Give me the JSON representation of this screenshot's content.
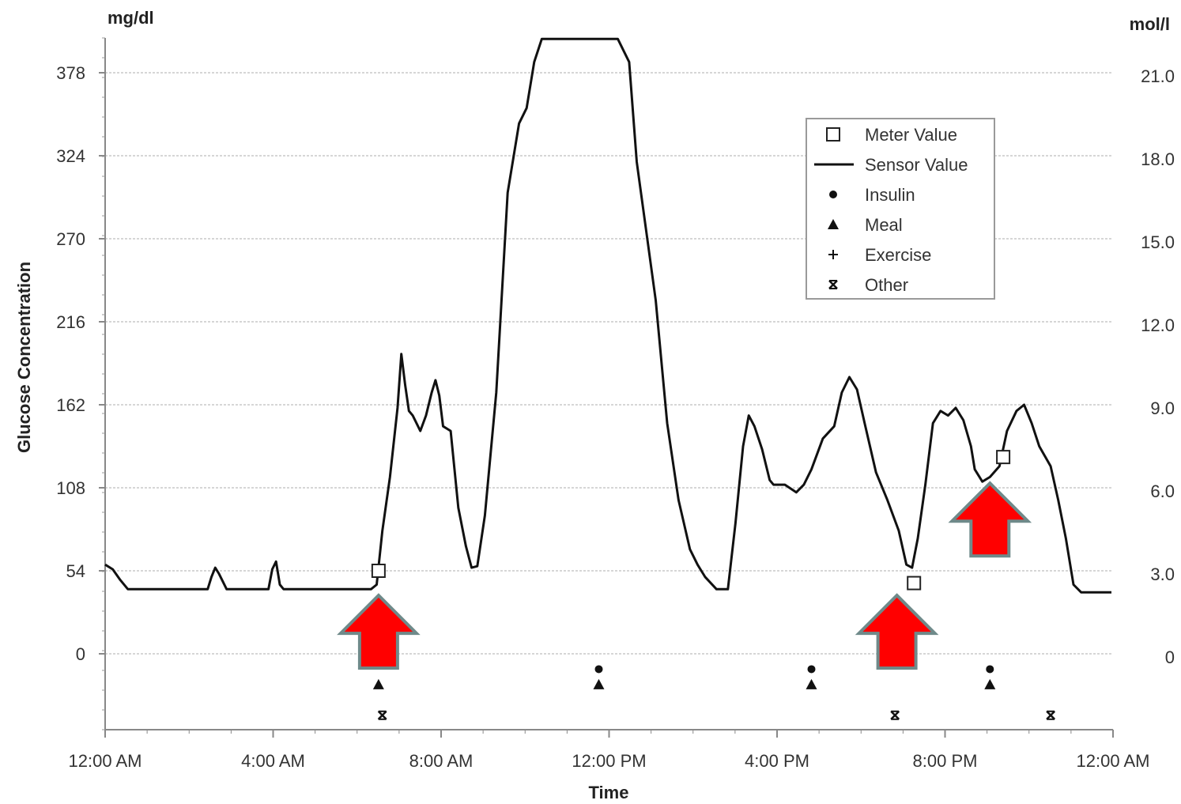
{
  "chart_data": {
    "type": "line",
    "ylabel": "Glucose Concentration",
    "xlabel": "Time",
    "y_unit_left": "mg/dl",
    "y_unit_right": "mol/l",
    "yticks_left": [
      "0",
      "54",
      "108",
      "162",
      "216",
      "270",
      "324",
      "378"
    ],
    "yticks_right": [
      "0",
      "3.0",
      "6.0",
      "9.0",
      "12.0",
      "15.0",
      "18.0",
      "21.0"
    ],
    "ytick_values": [
      0,
      54,
      108,
      162,
      216,
      270,
      324,
      378
    ],
    "xticks": [
      "12:00 AM",
      "4:00 AM",
      "8:00 AM",
      "12:00 PM",
      "4:00 PM",
      "8:00 PM",
      "12:00 AM"
    ],
    "xtick_hours": [
      0,
      4,
      8,
      12,
      16,
      20,
      24
    ],
    "xlim_hours": [
      0,
      24
    ],
    "ylim": [
      -50,
      400
    ],
    "grid": true,
    "legend_position": "upper-right",
    "legend": [
      {
        "marker": "square",
        "label": "Meter Value"
      },
      {
        "marker": "line",
        "label": "Sensor Value"
      },
      {
        "marker": "circle",
        "label": "Insulin"
      },
      {
        "marker": "triangle",
        "label": "Meal"
      },
      {
        "marker": "plus",
        "label": "Exercise"
      },
      {
        "marker": "x",
        "label": "Other"
      }
    ],
    "sensor_value": {
      "name": "Sensor Value",
      "points": [
        [
          0.0,
          58
        ],
        [
          0.2,
          55
        ],
        [
          0.4,
          48
        ],
        [
          0.6,
          42
        ],
        [
          1.0,
          42
        ],
        [
          2.0,
          42
        ],
        [
          2.7,
          42
        ],
        [
          2.8,
          50
        ],
        [
          2.9,
          56
        ],
        [
          3.0,
          52
        ],
        [
          3.2,
          42
        ],
        [
          4.0,
          42
        ],
        [
          4.3,
          42
        ],
        [
          4.4,
          55
        ],
        [
          4.5,
          60
        ],
        [
          4.6,
          45
        ],
        [
          4.7,
          42
        ],
        [
          5.5,
          42
        ],
        [
          6.5,
          42
        ],
        [
          7.0,
          42
        ],
        [
          7.15,
          45
        ],
        [
          7.3,
          80
        ],
        [
          7.5,
          115
        ],
        [
          7.7,
          160
        ],
        [
          7.8,
          195
        ],
        [
          7.9,
          175
        ],
        [
          8.0,
          158
        ],
        [
          8.1,
          155
        ],
        [
          8.3,
          145
        ],
        [
          8.45,
          155
        ],
        [
          8.6,
          170
        ],
        [
          8.7,
          178
        ],
        [
          8.8,
          168
        ],
        [
          8.9,
          148
        ],
        [
          9.1,
          145
        ],
        [
          9.3,
          95
        ],
        [
          9.5,
          70
        ],
        [
          9.65,
          56
        ],
        [
          9.8,
          57
        ],
        [
          10.0,
          90
        ],
        [
          10.3,
          170
        ],
        [
          10.6,
          300
        ],
        [
          10.9,
          345
        ],
        [
          11.1,
          355
        ],
        [
          11.3,
          385
        ],
        [
          11.5,
          400
        ],
        [
          12.5,
          400
        ],
        [
          13.5,
          400
        ],
        [
          13.8,
          385
        ],
        [
          14.0,
          320
        ],
        [
          14.5,
          230
        ],
        [
          14.8,
          150
        ],
        [
          15.1,
          100
        ],
        [
          15.4,
          68
        ],
        [
          15.6,
          58
        ],
        [
          15.8,
          50
        ],
        [
          16.1,
          42
        ],
        [
          16.4,
          42
        ],
        [
          16.6,
          85
        ],
        [
          16.8,
          135
        ],
        [
          16.95,
          155
        ],
        [
          17.1,
          148
        ],
        [
          17.3,
          133
        ],
        [
          17.5,
          113
        ],
        [
          17.6,
          110
        ],
        [
          17.9,
          110
        ],
        [
          18.2,
          105
        ],
        [
          18.4,
          110
        ],
        [
          18.6,
          120
        ],
        [
          18.9,
          140
        ],
        [
          19.2,
          148
        ],
        [
          19.4,
          170
        ],
        [
          19.6,
          180
        ],
        [
          19.8,
          172
        ],
        [
          20.0,
          150
        ],
        [
          20.3,
          118
        ],
        [
          20.6,
          100
        ],
        [
          20.9,
          80
        ],
        [
          21.1,
          58
        ],
        [
          21.25,
          56
        ],
        [
          21.4,
          75
        ],
        [
          21.6,
          110
        ],
        [
          21.8,
          150
        ],
        [
          22.0,
          158
        ],
        [
          22.2,
          155
        ],
        [
          22.4,
          160
        ],
        [
          22.6,
          152
        ],
        [
          22.8,
          135
        ],
        [
          22.9,
          120
        ],
        [
          23.1,
          112
        ],
        [
          23.3,
          115
        ],
        [
          23.55,
          122
        ],
        [
          23.75,
          145
        ],
        [
          24.0,
          158
        ],
        [
          24.2,
          162
        ],
        [
          24.4,
          150
        ],
        [
          24.6,
          135
        ],
        [
          24.9,
          122
        ],
        [
          25.1,
          100
        ],
        [
          25.3,
          75
        ],
        [
          25.5,
          45
        ],
        [
          25.7,
          40
        ],
        [
          26.5,
          40
        ]
      ]
    },
    "meter_value": {
      "name": "Meter Value",
      "points": [
        [
          7.2,
          54
        ],
        [
          21.3,
          46
        ],
        [
          23.65,
          128
        ]
      ]
    },
    "event_markers": [
      {
        "type": "Meal",
        "x": 7.2,
        "y": -20
      },
      {
        "type": "Other",
        "x": 7.3,
        "y": -40
      },
      {
        "type": "Insulin",
        "x": 13.0,
        "y": -10
      },
      {
        "type": "Meal",
        "x": 13.0,
        "y": -20
      },
      {
        "type": "Insulin",
        "x": 18.6,
        "y": -10
      },
      {
        "type": "Meal",
        "x": 18.6,
        "y": -20
      },
      {
        "type": "Other",
        "x": 20.8,
        "y": -40
      },
      {
        "type": "Insulin",
        "x": 23.3,
        "y": -10
      },
      {
        "type": "Meal",
        "x": 23.3,
        "y": -20
      },
      {
        "type": "Other",
        "x": 24.9,
        "y": -40
      }
    ],
    "annotations": [
      {
        "type": "red-arrow-up",
        "x": 7.2,
        "y": 38
      },
      {
        "type": "red-arrow-up",
        "x": 20.85,
        "y": 38
      },
      {
        "type": "red-arrow-up",
        "x": 23.3,
        "y": 111
      }
    ]
  }
}
